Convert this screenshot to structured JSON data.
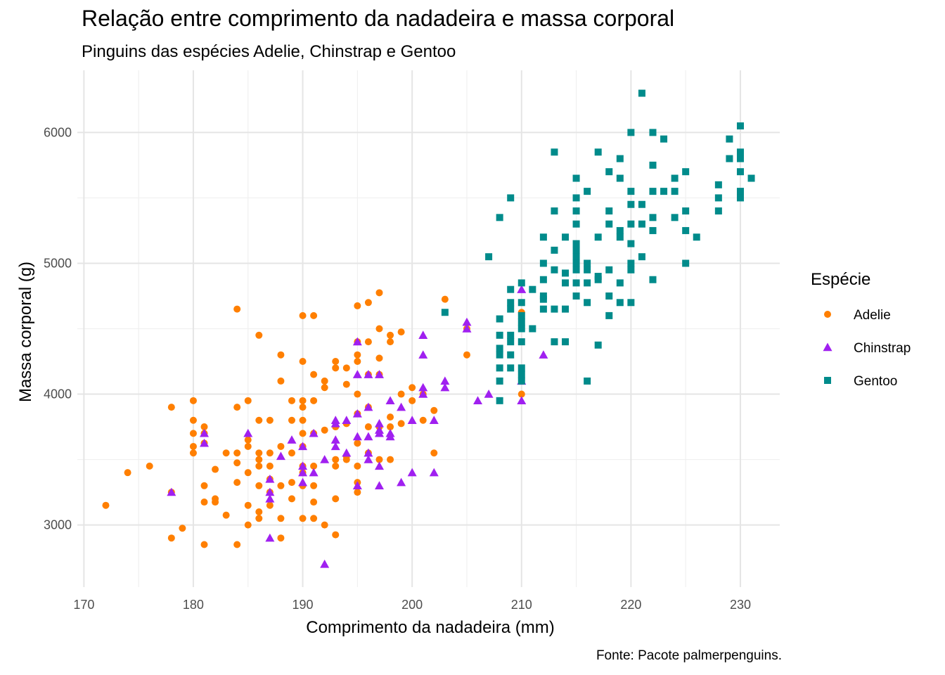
{
  "chart_data": {
    "type": "scatter",
    "title": "Relação entre comprimento da nadadeira e massa corporal",
    "subtitle": "Pinguins das espécies Adelie, Chinstrap e Gentoo",
    "xlabel": "Comprimento da nadadeira (mm)",
    "ylabel": "Massa corporal (g)",
    "caption": "Fonte: Pacote palmerpenguins.",
    "xlim": [
      169.4,
      233.6
    ],
    "ylim": [
      2525,
      6475
    ],
    "xticks": [
      170,
      180,
      190,
      200,
      210,
      220,
      230
    ],
    "yticks": [
      3000,
      4000,
      5000,
      6000
    ],
    "grid": true,
    "legend": {
      "title": "Espécie",
      "position": "right"
    },
    "series": [
      {
        "name": "Adelie",
        "color": "#FF7F00",
        "shape": "circle",
        "points": [
          [
            172,
            3150
          ],
          [
            174,
            3400
          ],
          [
            176,
            3450
          ],
          [
            178,
            3900
          ],
          [
            178,
            2900
          ],
          [
            178,
            3250
          ],
          [
            179,
            2975
          ],
          [
            180,
            3950
          ],
          [
            180,
            3800
          ],
          [
            180,
            3700
          ],
          [
            180,
            3600
          ],
          [
            180,
            3550
          ],
          [
            181,
            3750
          ],
          [
            181,
            3700
          ],
          [
            181,
            3625
          ],
          [
            181,
            3300
          ],
          [
            181,
            3175
          ],
          [
            181,
            2850
          ],
          [
            182,
            3425
          ],
          [
            182,
            3200
          ],
          [
            182,
            3175
          ],
          [
            183,
            3550
          ],
          [
            183,
            3075
          ],
          [
            184,
            4650
          ],
          [
            184,
            3900
          ],
          [
            184,
            3550
          ],
          [
            184,
            3475
          ],
          [
            184,
            3325
          ],
          [
            184,
            2850
          ],
          [
            185,
            3950
          ],
          [
            185,
            3650
          ],
          [
            185,
            3600
          ],
          [
            185,
            3400
          ],
          [
            185,
            3150
          ],
          [
            185,
            3000
          ],
          [
            186,
            4450
          ],
          [
            186,
            3800
          ],
          [
            186,
            3550
          ],
          [
            186,
            3500
          ],
          [
            186,
            3450
          ],
          [
            186,
            3300
          ],
          [
            186,
            3100
          ],
          [
            186,
            3050
          ],
          [
            187,
            3800
          ],
          [
            187,
            3550
          ],
          [
            187,
            3450
          ],
          [
            187,
            3350
          ],
          [
            187,
            3250
          ],
          [
            187,
            3150
          ],
          [
            188,
            4300
          ],
          [
            188,
            4100
          ],
          [
            188,
            3600
          ],
          [
            188,
            3300
          ],
          [
            188,
            3050
          ],
          [
            188,
            2900
          ],
          [
            189,
            3950
          ],
          [
            189,
            3800
          ],
          [
            189,
            3550
          ],
          [
            189,
            3325
          ],
          [
            189,
            3200
          ],
          [
            190,
            4600
          ],
          [
            190,
            4250
          ],
          [
            190,
            3950
          ],
          [
            190,
            3900
          ],
          [
            190,
            3800
          ],
          [
            190,
            3700
          ],
          [
            190,
            3600
          ],
          [
            190,
            3450
          ],
          [
            190,
            3400
          ],
          [
            190,
            3300
          ],
          [
            190,
            3050
          ],
          [
            191,
            4600
          ],
          [
            191,
            4150
          ],
          [
            191,
            3950
          ],
          [
            191,
            3700
          ],
          [
            191,
            3450
          ],
          [
            191,
            3300
          ],
          [
            191,
            3175
          ],
          [
            191,
            3050
          ],
          [
            192,
            4100
          ],
          [
            192,
            4050
          ],
          [
            192,
            3725
          ],
          [
            192,
            3000
          ],
          [
            193,
            4250
          ],
          [
            193,
            4200
          ],
          [
            193,
            3750
          ],
          [
            193,
            3500
          ],
          [
            193,
            3450
          ],
          [
            193,
            3200
          ],
          [
            193,
            2925
          ],
          [
            194,
            4200
          ],
          [
            194,
            4075
          ],
          [
            194,
            3775
          ],
          [
            194,
            3525
          ],
          [
            194,
            3500
          ],
          [
            195,
            4675
          ],
          [
            195,
            4400
          ],
          [
            195,
            4300
          ],
          [
            195,
            4250
          ],
          [
            195,
            4000
          ],
          [
            195,
            3850
          ],
          [
            195,
            3625
          ],
          [
            195,
            3450
          ],
          [
            195,
            3325
          ],
          [
            195,
            3250
          ],
          [
            196,
            4700
          ],
          [
            196,
            4400
          ],
          [
            196,
            4150
          ],
          [
            196,
            3900
          ],
          [
            196,
            3750
          ],
          [
            196,
            3550
          ],
          [
            197,
            4775
          ],
          [
            197,
            4500
          ],
          [
            197,
            4275
          ],
          [
            197,
            4150
          ],
          [
            197,
            3750
          ],
          [
            197,
            3500
          ],
          [
            198,
            4450
          ],
          [
            198,
            4400
          ],
          [
            198,
            3825
          ],
          [
            198,
            3750
          ],
          [
            198,
            3500
          ],
          [
            199,
            4475
          ],
          [
            199,
            4000
          ],
          [
            199,
            3775
          ],
          [
            200,
            4050
          ],
          [
            200,
            3950
          ],
          [
            201,
            4000
          ],
          [
            201,
            3800
          ],
          [
            202,
            3875
          ],
          [
            202,
            3550
          ],
          [
            203,
            4725
          ],
          [
            205,
            4500
          ],
          [
            205,
            4300
          ],
          [
            210,
            4000
          ],
          [
            210,
            4625
          ]
        ]
      },
      {
        "name": "Chinstrap",
        "color": "#A020F0",
        "shape": "triangle",
        "points": [
          [
            178,
            3250
          ],
          [
            181,
            3700
          ],
          [
            181,
            3625
          ],
          [
            185,
            3700
          ],
          [
            187,
            3350
          ],
          [
            187,
            3250
          ],
          [
            187,
            3200
          ],
          [
            187,
            2900
          ],
          [
            188,
            3525
          ],
          [
            189,
            3650
          ],
          [
            190,
            3600
          ],
          [
            190,
            3450
          ],
          [
            190,
            3400
          ],
          [
            190,
            3325
          ],
          [
            191,
            3700
          ],
          [
            191,
            3400
          ],
          [
            192,
            3500
          ],
          [
            192,
            2700
          ],
          [
            193,
            3800
          ],
          [
            193,
            3775
          ],
          [
            193,
            3650
          ],
          [
            193,
            3600
          ],
          [
            194,
            3800
          ],
          [
            194,
            3550
          ],
          [
            195,
            4400
          ],
          [
            195,
            4150
          ],
          [
            195,
            3850
          ],
          [
            195,
            3675
          ],
          [
            195,
            3300
          ],
          [
            196,
            4150
          ],
          [
            196,
            3900
          ],
          [
            196,
            3675
          ],
          [
            196,
            3550
          ],
          [
            196,
            3500
          ],
          [
            197,
            4150
          ],
          [
            197,
            3775
          ],
          [
            197,
            3725
          ],
          [
            197,
            3700
          ],
          [
            197,
            3450
          ],
          [
            197,
            3300
          ],
          [
            198,
            3950
          ],
          [
            198,
            3700
          ],
          [
            198,
            3675
          ],
          [
            199,
            3900
          ],
          [
            199,
            3325
          ],
          [
            200,
            3800
          ],
          [
            200,
            3400
          ],
          [
            201,
            4450
          ],
          [
            201,
            4300
          ],
          [
            201,
            4050
          ],
          [
            201,
            4000
          ],
          [
            202,
            3800
          ],
          [
            202,
            3400
          ],
          [
            203,
            4100
          ],
          [
            203,
            4050
          ],
          [
            205,
            4550
          ],
          [
            205,
            4500
          ],
          [
            206,
            3950
          ],
          [
            207,
            4000
          ],
          [
            210,
            4800
          ],
          [
            210,
            4100
          ],
          [
            210,
            3950
          ],
          [
            212,
            4300
          ]
        ]
      },
      {
        "name": "Gentoo",
        "color": "#008B8B",
        "shape": "square",
        "points": [
          [
            203,
            4625
          ],
          [
            207,
            5050
          ],
          [
            208,
            4575
          ],
          [
            208,
            4450
          ],
          [
            208,
            4350
          ],
          [
            208,
            4300
          ],
          [
            208,
            4200
          ],
          [
            208,
            4100
          ],
          [
            208,
            3950
          ],
          [
            208,
            5350
          ],
          [
            209,
            5500
          ],
          [
            209,
            4800
          ],
          [
            209,
            4700
          ],
          [
            209,
            4650
          ],
          [
            209,
            4450
          ],
          [
            209,
            4400
          ],
          [
            209,
            4300
          ],
          [
            209,
            4200
          ],
          [
            210,
            4850
          ],
          [
            210,
            4700
          ],
          [
            210,
            4600
          ],
          [
            210,
            4550
          ],
          [
            210,
            4500
          ],
          [
            210,
            4400
          ],
          [
            210,
            4200
          ],
          [
            210,
            4150
          ],
          [
            210,
            4100
          ],
          [
            211,
            4800
          ],
          [
            211,
            4500
          ],
          [
            212,
            5200
          ],
          [
            212,
            5000
          ],
          [
            212,
            4875
          ],
          [
            212,
            4750
          ],
          [
            212,
            4725
          ],
          [
            212,
            4650
          ],
          [
            213,
            5850
          ],
          [
            213,
            5400
          ],
          [
            213,
            5100
          ],
          [
            213,
            4950
          ],
          [
            213,
            4650
          ],
          [
            213,
            4400
          ],
          [
            214,
            5200
          ],
          [
            214,
            4925
          ],
          [
            214,
            4850
          ],
          [
            214,
            4650
          ],
          [
            214,
            4400
          ],
          [
            215,
            5650
          ],
          [
            215,
            5500
          ],
          [
            215,
            5400
          ],
          [
            215,
            5300
          ],
          [
            215,
            5150
          ],
          [
            215,
            5100
          ],
          [
            215,
            5050
          ],
          [
            215,
            5000
          ],
          [
            215,
            4950
          ],
          [
            215,
            4850
          ],
          [
            215,
            4750
          ],
          [
            216,
            5550
          ],
          [
            216,
            5000
          ],
          [
            216,
            4950
          ],
          [
            216,
            4850
          ],
          [
            216,
            4700
          ],
          [
            216,
            4100
          ],
          [
            217,
            5850
          ],
          [
            217,
            5200
          ],
          [
            217,
            4900
          ],
          [
            217,
            4875
          ],
          [
            217,
            4375
          ],
          [
            218,
            5700
          ],
          [
            218,
            5400
          ],
          [
            218,
            5300
          ],
          [
            218,
            4950
          ],
          [
            218,
            4750
          ],
          [
            218,
            4600
          ],
          [
            219,
            5800
          ],
          [
            219,
            5650
          ],
          [
            219,
            5250
          ],
          [
            219,
            5200
          ],
          [
            219,
            4850
          ],
          [
            219,
            4700
          ],
          [
            220,
            6000
          ],
          [
            220,
            5550
          ],
          [
            220,
            5450
          ],
          [
            220,
            5300
          ],
          [
            220,
            5150
          ],
          [
            220,
            5000
          ],
          [
            220,
            4950
          ],
          [
            220,
            4700
          ],
          [
            221,
            6300
          ],
          [
            221,
            5450
          ],
          [
            221,
            5300
          ],
          [
            221,
            5050
          ],
          [
            222,
            6000
          ],
          [
            222,
            5750
          ],
          [
            222,
            5550
          ],
          [
            222,
            5350
          ],
          [
            222,
            5250
          ],
          [
            222,
            4875
          ],
          [
            223,
            5950
          ],
          [
            223,
            5550
          ],
          [
            224,
            5650
          ],
          [
            224,
            5550
          ],
          [
            224,
            5350
          ],
          [
            225,
            5700
          ],
          [
            225,
            5400
          ],
          [
            225,
            5250
          ],
          [
            225,
            5000
          ],
          [
            226,
            5200
          ],
          [
            228,
            5600
          ],
          [
            228,
            5500
          ],
          [
            228,
            5400
          ],
          [
            229,
            5950
          ],
          [
            229,
            5800
          ],
          [
            230,
            6050
          ],
          [
            230,
            5850
          ],
          [
            230,
            5800
          ],
          [
            230,
            5700
          ],
          [
            230,
            5550
          ],
          [
            230,
            5500
          ],
          [
            231,
            5650
          ]
        ]
      }
    ]
  }
}
